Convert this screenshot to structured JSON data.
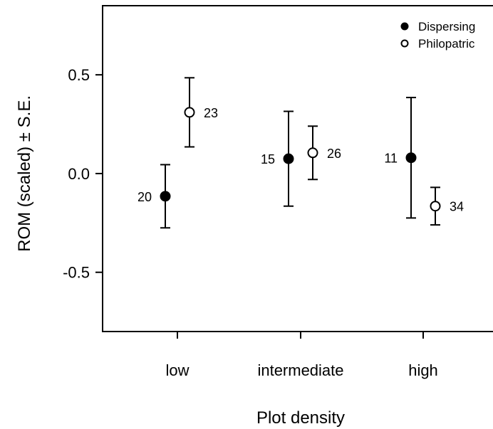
{
  "chart_data": {
    "type": "scatter",
    "title": "",
    "xlabel": "Plot density",
    "ylabel": "ROM (scaled) ± S.E.",
    "categories": [
      "low",
      "intermediate",
      "high"
    ],
    "ylim": [
      -0.8,
      0.85
    ],
    "yticks": [
      -0.5,
      0.0,
      0.5
    ],
    "ytick_labels": [
      "-0.5",
      "0.0",
      "0.5"
    ],
    "grid": false,
    "legend_position": "top-right",
    "series": [
      {
        "name": "Dispersing",
        "marker": "filled-circle",
        "color": "#000000",
        "values": [
          -0.115,
          0.075,
          0.08
        ],
        "se_low": [
          -0.275,
          -0.165,
          -0.225
        ],
        "se_high": [
          0.045,
          0.315,
          0.385
        ],
        "n_labels": [
          "20",
          "15",
          "11"
        ]
      },
      {
        "name": "Philopatric",
        "marker": "open-circle",
        "color": "#000000",
        "values": [
          0.31,
          0.105,
          -0.165
        ],
        "se_low": [
          0.135,
          -0.03,
          -0.26
        ],
        "se_high": [
          0.485,
          0.24,
          -0.07
        ],
        "n_labels": [
          "23",
          "26",
          "34"
        ]
      }
    ]
  }
}
